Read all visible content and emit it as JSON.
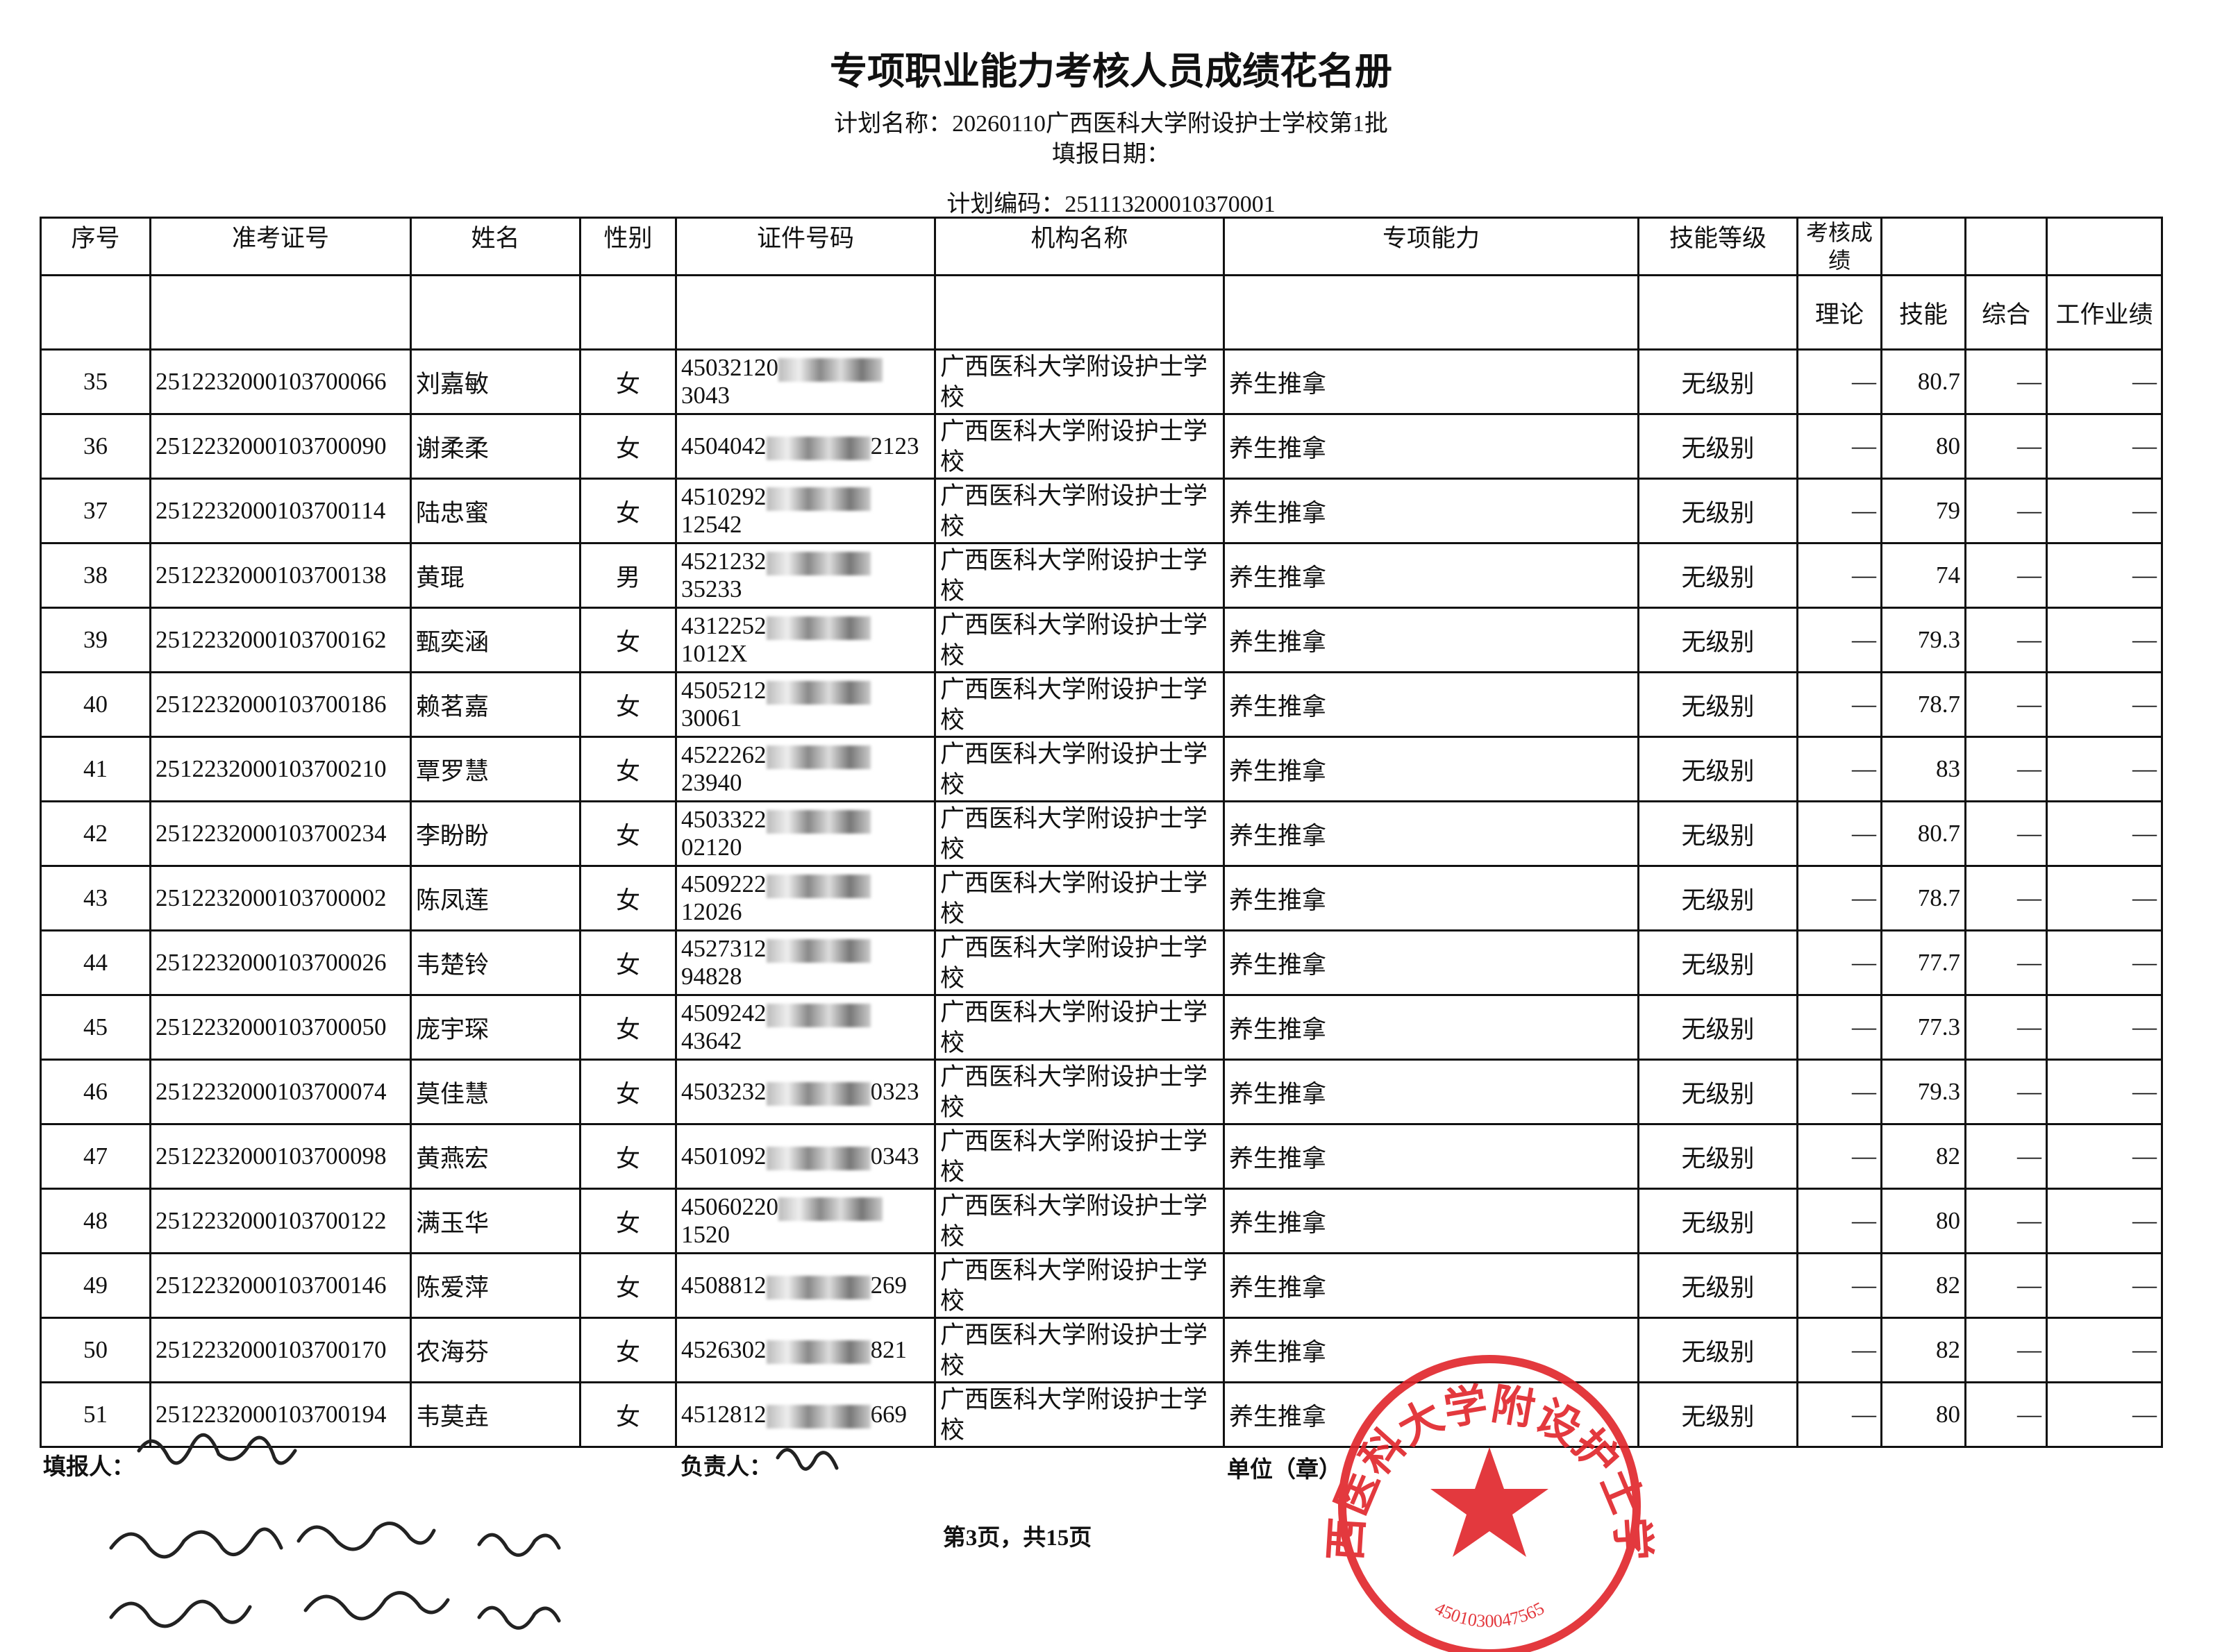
{
  "header": {
    "title": "专项职业能力考核人员成绩花名册",
    "plan_name": "计划名称：20260110广西医科大学附设护士学校第1批",
    "fill_date": "填报日期：",
    "plan_code": "计划编码：251113200010370001"
  },
  "table": {
    "headers": [
      "序号",
      "准考证号",
      "姓名",
      "性别",
      "证件号码",
      "机构名称",
      "专项能力",
      "技能等级",
      "考核成绩"
    ],
    "score_subheaders": [
      "理论",
      "技能",
      "综合",
      "工作业绩"
    ],
    "rows": [
      [
        35,
        "2512232000103700066",
        "刘嘉敏",
        "女",
        "45032120",
        "3043",
        "广西医科大学附设护士学校",
        "养生推拿",
        "无级别",
        "—",
        80.7,
        "—",
        "—"
      ],
      [
        36,
        "2512232000103700090",
        "谢柔柔",
        "女",
        "4504042",
        "2123",
        "广西医科大学附设护士学校",
        "养生推拿",
        "无级别",
        "—",
        80,
        "—",
        "—"
      ],
      [
        37,
        "2512232000103700114",
        "陆忠蜜",
        "女",
        "4510292",
        "12542",
        "广西医科大学附设护士学校",
        "养生推拿",
        "无级别",
        "—",
        79,
        "—",
        "—"
      ],
      [
        38,
        "2512232000103700138",
        "黄琨",
        "男",
        "4521232",
        "35233",
        "广西医科大学附设护士学校",
        "养生推拿",
        "无级别",
        "—",
        74,
        "—",
        "—"
      ],
      [
        39,
        "2512232000103700162",
        "甄奕涵",
        "女",
        "4312252",
        "1012X",
        "广西医科大学附设护士学校",
        "养生推拿",
        "无级别",
        "—",
        79.3,
        "—",
        "—"
      ],
      [
        40,
        "2512232000103700186",
        "赖茗嘉",
        "女",
        "4505212",
        "30061",
        "广西医科大学附设护士学校",
        "养生推拿",
        "无级别",
        "—",
        78.7,
        "—",
        "—"
      ],
      [
        41,
        "2512232000103700210",
        "覃罗慧",
        "女",
        "4522262",
        "23940",
        "广西医科大学附设护士学校",
        "养生推拿",
        "无级别",
        "—",
        83,
        "—",
        "—"
      ],
      [
        42,
        "2512232000103700234",
        "李盼盼",
        "女",
        "4503322",
        "02120",
        "广西医科大学附设护士学校",
        "养生推拿",
        "无级别",
        "—",
        80.7,
        "—",
        "—"
      ],
      [
        43,
        "2512232000103700002",
        "陈凤莲",
        "女",
        "4509222",
        "12026",
        "广西医科大学附设护士学校",
        "养生推拿",
        "无级别",
        "—",
        78.7,
        "—",
        "—"
      ],
      [
        44,
        "2512232000103700026",
        "韦楚铃",
        "女",
        "4527312",
        "94828",
        "广西医科大学附设护士学校",
        "养生推拿",
        "无级别",
        "—",
        77.7,
        "—",
        "—"
      ],
      [
        45,
        "2512232000103700050",
        "庞宇琛",
        "女",
        "4509242",
        "43642",
        "广西医科大学附设护士学校",
        "养生推拿",
        "无级别",
        "—",
        77.3,
        "—",
        "—"
      ],
      [
        46,
        "2512232000103700074",
        "莫佳慧",
        "女",
        "4503232",
        "0323",
        "广西医科大学附设护士学校",
        "养生推拿",
        "无级别",
        "—",
        79.3,
        "—",
        "—"
      ],
      [
        47,
        "2512232000103700098",
        "黄燕宏",
        "女",
        "4501092",
        "0343",
        "广西医科大学附设护士学校",
        "养生推拿",
        "无级别",
        "—",
        82,
        "—",
        "—"
      ],
      [
        48,
        "2512232000103700122",
        "满玉华",
        "女",
        "45060220",
        "1520",
        "广西医科大学附设护士学校",
        "养生推拿",
        "无级别",
        "—",
        80,
        "—",
        "—"
      ],
      [
        49,
        "2512232000103700146",
        "陈爱萍",
        "女",
        "4508812",
        "269",
        "广西医科大学附设护士学校",
        "养生推拿",
        "无级别",
        "—",
        82,
        "—",
        "—"
      ],
      [
        50,
        "2512232000103700170",
        "农海芬",
        "女",
        "4526302",
        "821",
        "广西医科大学附设护士学校",
        "养生推拿",
        "无级别",
        "—",
        82,
        "—",
        "—"
      ],
      [
        51,
        "2512232000103700194",
        "韦莫垚",
        "女",
        "4512812",
        "669",
        "广西医科大学附设护士学校",
        "养生推拿",
        "无级别",
        "—",
        80,
        "—",
        "—"
      ]
    ]
  },
  "footer": {
    "filler": "填报人：",
    "leader": "负责人：",
    "unit": "单位（章）",
    "page": "第3页，共15页"
  },
  "stamp": {
    "name": "广西医科大学附设护士学校",
    "code": "4501030047565"
  }
}
